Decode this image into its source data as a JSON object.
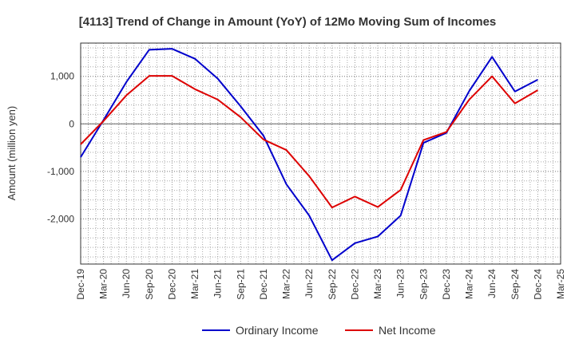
{
  "chart_data": {
    "type": "line",
    "title": "[4113]  Trend of Change in Amount (YoY) of 12Mo Moving Sum of Incomes",
    "ylabel": "Amount (million yen)",
    "xlabel": "",
    "ylim": [
      -2950,
      1700
    ],
    "yticks": [
      -2000,
      -1000,
      0,
      1000
    ],
    "ytick_labels": [
      "-2,000",
      "-1,000",
      "0",
      "1,000"
    ],
    "categories": [
      "Dec-19",
      "Mar-20",
      "Jun-20",
      "Sep-20",
      "Dec-20",
      "Mar-21",
      "Jun-21",
      "Sep-21",
      "Dec-21",
      "Mar-22",
      "Jun-22",
      "Sep-22",
      "Dec-22",
      "Mar-23",
      "Jun-23",
      "Sep-23",
      "Dec-23",
      "Mar-24",
      "Jun-24",
      "Sep-24",
      "Dec-24",
      "Mar-25"
    ],
    "grid": true,
    "legend_position": "bottom",
    "series": [
      {
        "name": "Ordinary Income",
        "color": "#0000cc",
        "values": [
          -700,
          80,
          880,
          1560,
          1580,
          1370,
          950,
          370,
          -250,
          -1270,
          -1930,
          -2870,
          -2510,
          -2370,
          -1930,
          -400,
          -190,
          690,
          1410,
          680,
          930,
          null
        ]
      },
      {
        "name": "Net Income",
        "color": "#dd0000",
        "values": [
          -430,
          60,
          600,
          1010,
          1010,
          730,
          510,
          140,
          -330,
          -550,
          -1100,
          -1760,
          -1530,
          -1750,
          -1390,
          -340,
          -170,
          510,
          1000,
          430,
          710,
          null
        ]
      }
    ]
  }
}
